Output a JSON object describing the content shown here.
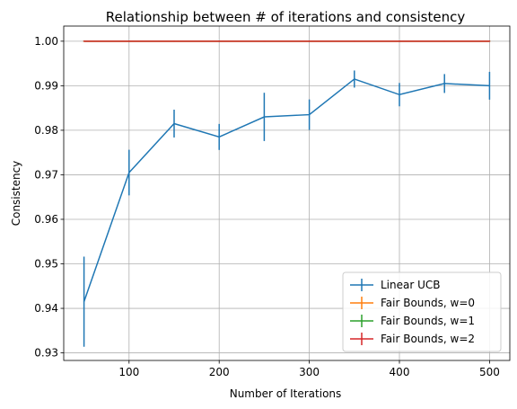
{
  "chart_data": {
    "type": "line",
    "title": "Relationship between # of iterations and consistency",
    "xlabel": "Number of Iterations",
    "ylabel": "Consistency",
    "xlim": [
      27.5,
      522.5
    ],
    "ylim": [
      0.9283,
      1.0034
    ],
    "xticks": [
      100,
      200,
      300,
      400,
      500
    ],
    "yticks": [
      0.93,
      0.94,
      0.95,
      0.96,
      0.97,
      0.98,
      0.99,
      1.0
    ],
    "ytick_labels": [
      "0.93",
      "0.94",
      "0.95",
      "0.96",
      "0.97",
      "0.98",
      "0.99",
      "1.00"
    ],
    "grid": true,
    "legend_position": "lower-right",
    "x": [
      50,
      100,
      150,
      200,
      250,
      300,
      350,
      400,
      450,
      500
    ],
    "series": [
      {
        "name": "Linear UCB",
        "color": "#1f77b4",
        "values": [
          0.9415,
          0.9705,
          0.9815,
          0.9785,
          0.983,
          0.9835,
          0.9915,
          0.988,
          0.9905,
          0.99
        ],
        "errors": [
          0.01,
          0.005,
          0.003,
          0.0028,
          0.0053,
          0.0033,
          0.0018,
          0.0025,
          0.002,
          0.003
        ]
      },
      {
        "name": "Fair Bounds, w=0",
        "color": "#ff7f0e",
        "values": [
          1.0,
          1.0,
          1.0,
          1.0,
          1.0,
          1.0,
          1.0,
          1.0,
          1.0,
          1.0
        ],
        "errors": [
          0,
          0,
          0,
          0,
          0,
          0,
          0,
          0,
          0,
          0
        ]
      },
      {
        "name": "Fair Bounds, w=1",
        "color": "#2ca02c",
        "values": [
          1.0,
          1.0,
          1.0,
          1.0,
          1.0,
          1.0,
          1.0,
          1.0,
          1.0,
          1.0
        ],
        "errors": [
          0,
          0,
          0,
          0,
          0,
          0,
          0,
          0,
          0,
          0
        ]
      },
      {
        "name": "Fair Bounds, w=2",
        "color": "#d62728",
        "values": [
          1.0,
          1.0,
          1.0,
          1.0,
          1.0,
          1.0,
          1.0,
          1.0,
          1.0,
          1.0
        ],
        "errors": [
          0,
          0,
          0,
          0,
          0,
          0,
          0,
          0,
          0,
          0
        ]
      }
    ]
  }
}
